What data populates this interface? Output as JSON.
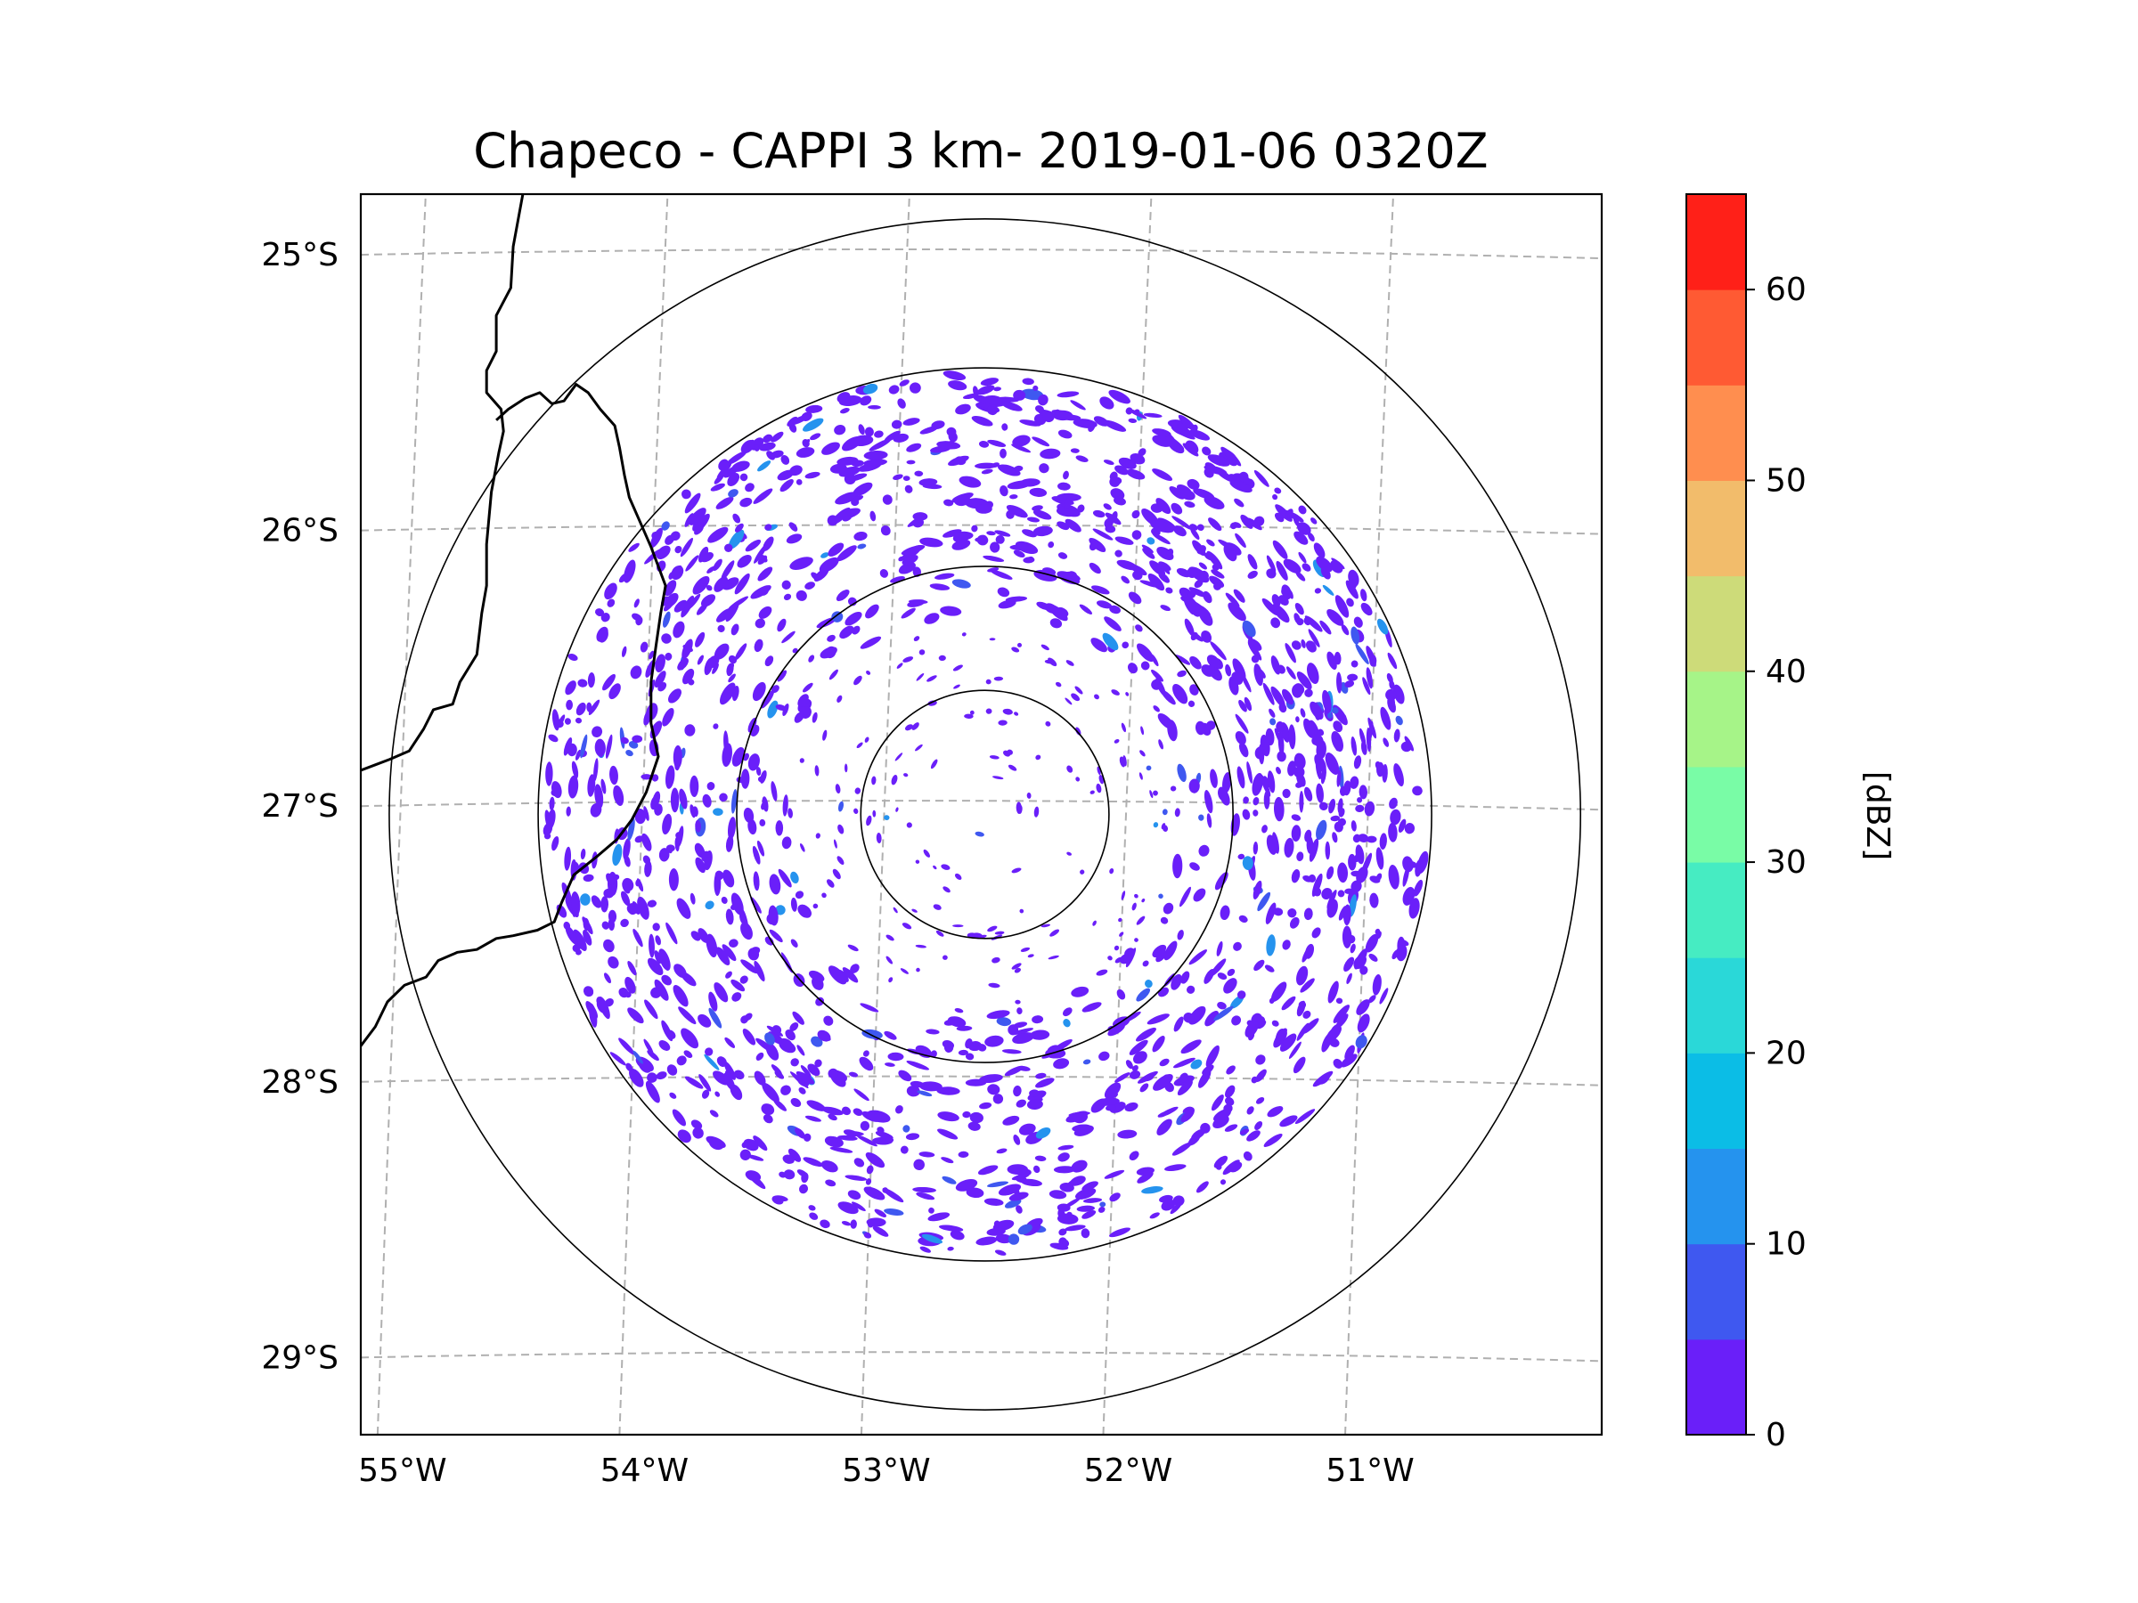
{
  "chart_data": {
    "type": "radar_ppi_map",
    "title": "Chapeco - CAPPI 3 km- 2019-01-06 0320Z",
    "radar_name": "Chapeco",
    "product": "CAPPI 3 km",
    "datetime": "2019-01-06 0320Z",
    "radar_center": {
      "lon": -52.6,
      "lat": -27.03
    },
    "range_rings": [
      {
        "label": "ring-1",
        "radius_deg_lat": 0.45
      },
      {
        "label": "ring-2",
        "radius_deg_lat": 0.9
      },
      {
        "label": "ring-3",
        "radius_deg_lat": 1.62
      },
      {
        "label": "ring-4",
        "radius_deg_lat": 2.16
      }
    ],
    "echo_max_radius_deg_lat": 1.6,
    "lon_range": [
      -55.18,
      -50.05
    ],
    "lat_range": [
      -29.28,
      -24.78
    ],
    "lon_ticks": [
      {
        "value": -55,
        "label": "55°W"
      },
      {
        "value": -54,
        "label": "54°W"
      },
      {
        "value": -53,
        "label": "53°W"
      },
      {
        "value": -52,
        "label": "52°W"
      },
      {
        "value": -51,
        "label": "51°W"
      }
    ],
    "lat_ticks": [
      {
        "value": -25,
        "label": "25°S"
      },
      {
        "value": -26,
        "label": "26°S"
      },
      {
        "value": -27,
        "label": "27°S"
      },
      {
        "value": -28,
        "label": "28°S"
      },
      {
        "value": -29,
        "label": "29°S"
      }
    ],
    "gridlines": true,
    "colorbar": {
      "label": "[dBZ]",
      "min": 0,
      "max": 65,
      "step": 5,
      "tick_values": [
        0,
        10,
        20,
        30,
        40,
        50,
        60
      ],
      "tick_labels": [
        "0",
        "10",
        "20",
        "30",
        "40",
        "50",
        "60"
      ],
      "colors": [
        "#6a1ff9",
        "#3f58f0",
        "#2593ee",
        "#0bbde6",
        "#2ad8d8",
        "#46ecc2",
        "#79fca6",
        "#a6f488",
        "#cddb79",
        "#f2bc6b",
        "#ff8e4f",
        "#ff5a33",
        "#ff2018"
      ]
    },
    "echo_intensity_summary": {
      "dominant_dbz_range": [
        0,
        5
      ],
      "sparse_dbz_range": [
        5,
        15
      ],
      "dense_sector": "north-east"
    }
  },
  "map": {
    "boundaries": [
      {
        "name": "western-border",
        "points": [
          [
            -54.51,
            -24.78
          ],
          [
            -54.55,
            -24.97
          ],
          [
            -54.56,
            -25.12
          ],
          [
            -54.62,
            -25.22
          ],
          [
            -54.62,
            -25.35
          ],
          [
            -54.66,
            -25.42
          ],
          [
            -54.66,
            -25.5
          ],
          [
            -54.6,
            -25.56
          ],
          [
            -54.59,
            -25.64
          ],
          [
            -54.61,
            -25.72
          ],
          [
            -54.64,
            -25.86
          ],
          [
            -54.66,
            -26.05
          ],
          [
            -54.66,
            -26.2
          ],
          [
            -54.68,
            -26.3
          ],
          [
            -54.7,
            -26.45
          ],
          [
            -54.77,
            -26.55
          ],
          [
            -54.8,
            -26.63
          ],
          [
            -54.88,
            -26.65
          ],
          [
            -54.92,
            -26.72
          ],
          [
            -54.98,
            -26.8
          ],
          [
            -55.06,
            -26.83
          ],
          [
            -55.12,
            -26.85
          ],
          [
            -55.18,
            -26.87
          ]
        ]
      },
      {
        "name": "interior-border",
        "points": [
          [
            -54.62,
            -25.6
          ],
          [
            -54.57,
            -25.56
          ],
          [
            -54.5,
            -25.52
          ],
          [
            -54.44,
            -25.5
          ],
          [
            -54.39,
            -25.54
          ],
          [
            -54.34,
            -25.53
          ],
          [
            -54.29,
            -25.47
          ],
          [
            -54.24,
            -25.5
          ],
          [
            -54.19,
            -25.56
          ],
          [
            -54.13,
            -25.62
          ],
          [
            -54.11,
            -25.7
          ],
          [
            -54.09,
            -25.8
          ],
          [
            -54.07,
            -25.88
          ],
          [
            -54.03,
            -25.96
          ],
          [
            -53.98,
            -26.06
          ],
          [
            -53.92,
            -26.2
          ],
          [
            -53.94,
            -26.3
          ],
          [
            -53.96,
            -26.42
          ],
          [
            -53.98,
            -26.55
          ],
          [
            -53.98,
            -26.7
          ],
          [
            -53.95,
            -26.82
          ],
          [
            -54.0,
            -26.95
          ],
          [
            -54.06,
            -27.05
          ],
          [
            -54.12,
            -27.12
          ],
          [
            -54.2,
            -27.18
          ],
          [
            -54.3,
            -27.25
          ],
          [
            -54.35,
            -27.35
          ],
          [
            -54.38,
            -27.42
          ],
          [
            -54.45,
            -27.45
          ],
          [
            -54.55,
            -27.47
          ],
          [
            -54.62,
            -27.48
          ],
          [
            -54.7,
            -27.52
          ],
          [
            -54.78,
            -27.53
          ],
          [
            -54.86,
            -27.56
          ],
          [
            -54.91,
            -27.62
          ],
          [
            -55.0,
            -27.65
          ],
          [
            -55.07,
            -27.71
          ],
          [
            -55.12,
            -27.8
          ],
          [
            -55.18,
            -27.87
          ]
        ]
      }
    ]
  }
}
